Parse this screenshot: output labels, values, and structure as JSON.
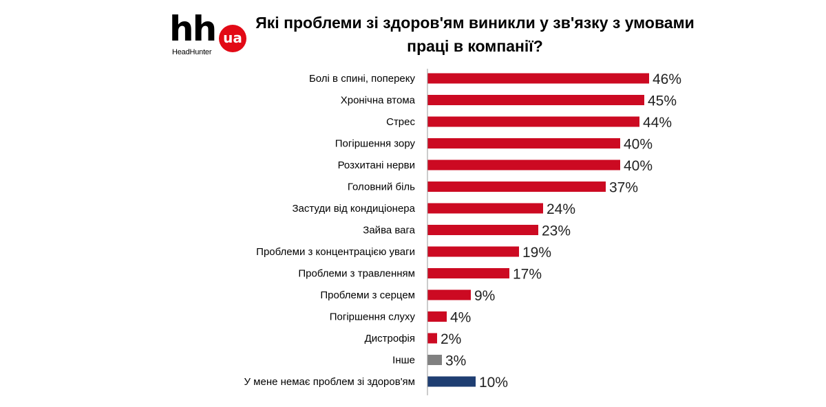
{
  "logo": {
    "mark": "hh",
    "badge": "ua",
    "name": "HeadHunter"
  },
  "colors": {
    "primary_bar": "#cc0a22",
    "other_bar": "#808080",
    "no_problem_bar": "#1f3e72",
    "axis": "#999999"
  },
  "chart_data": {
    "type": "bar",
    "orientation": "horizontal",
    "title": "Які проблеми зі здоров'ям виникли у зв'язку з умовами праці в компанії?",
    "xlabel": "",
    "ylabel": "",
    "xlim": [
      0,
      50
    ],
    "grid": false,
    "legend": "none",
    "categories": [
      "Болі в спині, попереку",
      "Хронічна втома",
      "Стрес",
      "Погіршення зору",
      "Розхитані нерви",
      "Головний біль",
      "Застуди від кондиціонера",
      "Зайва вага",
      "Проблеми з концентрацією уваги",
      "Проблеми з травленням",
      "Проблеми з серцем",
      "Погіршення слуху",
      "Дистрофія",
      "Інше",
      "У мене немає проблем зі здоров'ям"
    ],
    "values": [
      46,
      45,
      44,
      40,
      40,
      37,
      24,
      23,
      19,
      17,
      9,
      4,
      2,
      3,
      10
    ],
    "value_labels": [
      "46%",
      "45%",
      "44%",
      "40%",
      "40%",
      "37%",
      "24%",
      "23%",
      "19%",
      "17%",
      "9%",
      "4%",
      "2%",
      "3%",
      "10%"
    ],
    "bar_color_keys": [
      "primary_bar",
      "primary_bar",
      "primary_bar",
      "primary_bar",
      "primary_bar",
      "primary_bar",
      "primary_bar",
      "primary_bar",
      "primary_bar",
      "primary_bar",
      "primary_bar",
      "primary_bar",
      "primary_bar",
      "other_bar",
      "no_problem_bar"
    ]
  }
}
